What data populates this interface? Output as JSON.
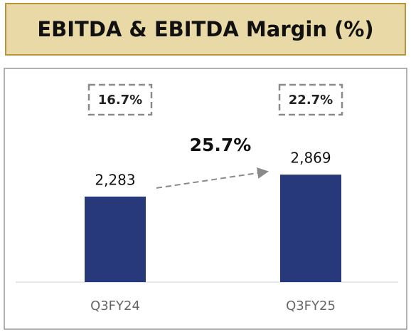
{
  "chart_data": {
    "type": "bar",
    "title": "EBITDA & EBITDA Margin (%)",
    "categories": [
      "Q3FY24",
      "Q3FY25"
    ],
    "values": [
      2283,
      2869
    ],
    "value_labels": [
      "2,283",
      "2,869"
    ],
    "color": "#27397a",
    "margins": {
      "values": [
        16.7,
        22.7
      ],
      "value_labels": [
        "16.7%",
        "22.7%"
      ]
    },
    "growth": {
      "value": 25.7,
      "label": "25.7%"
    }
  }
}
